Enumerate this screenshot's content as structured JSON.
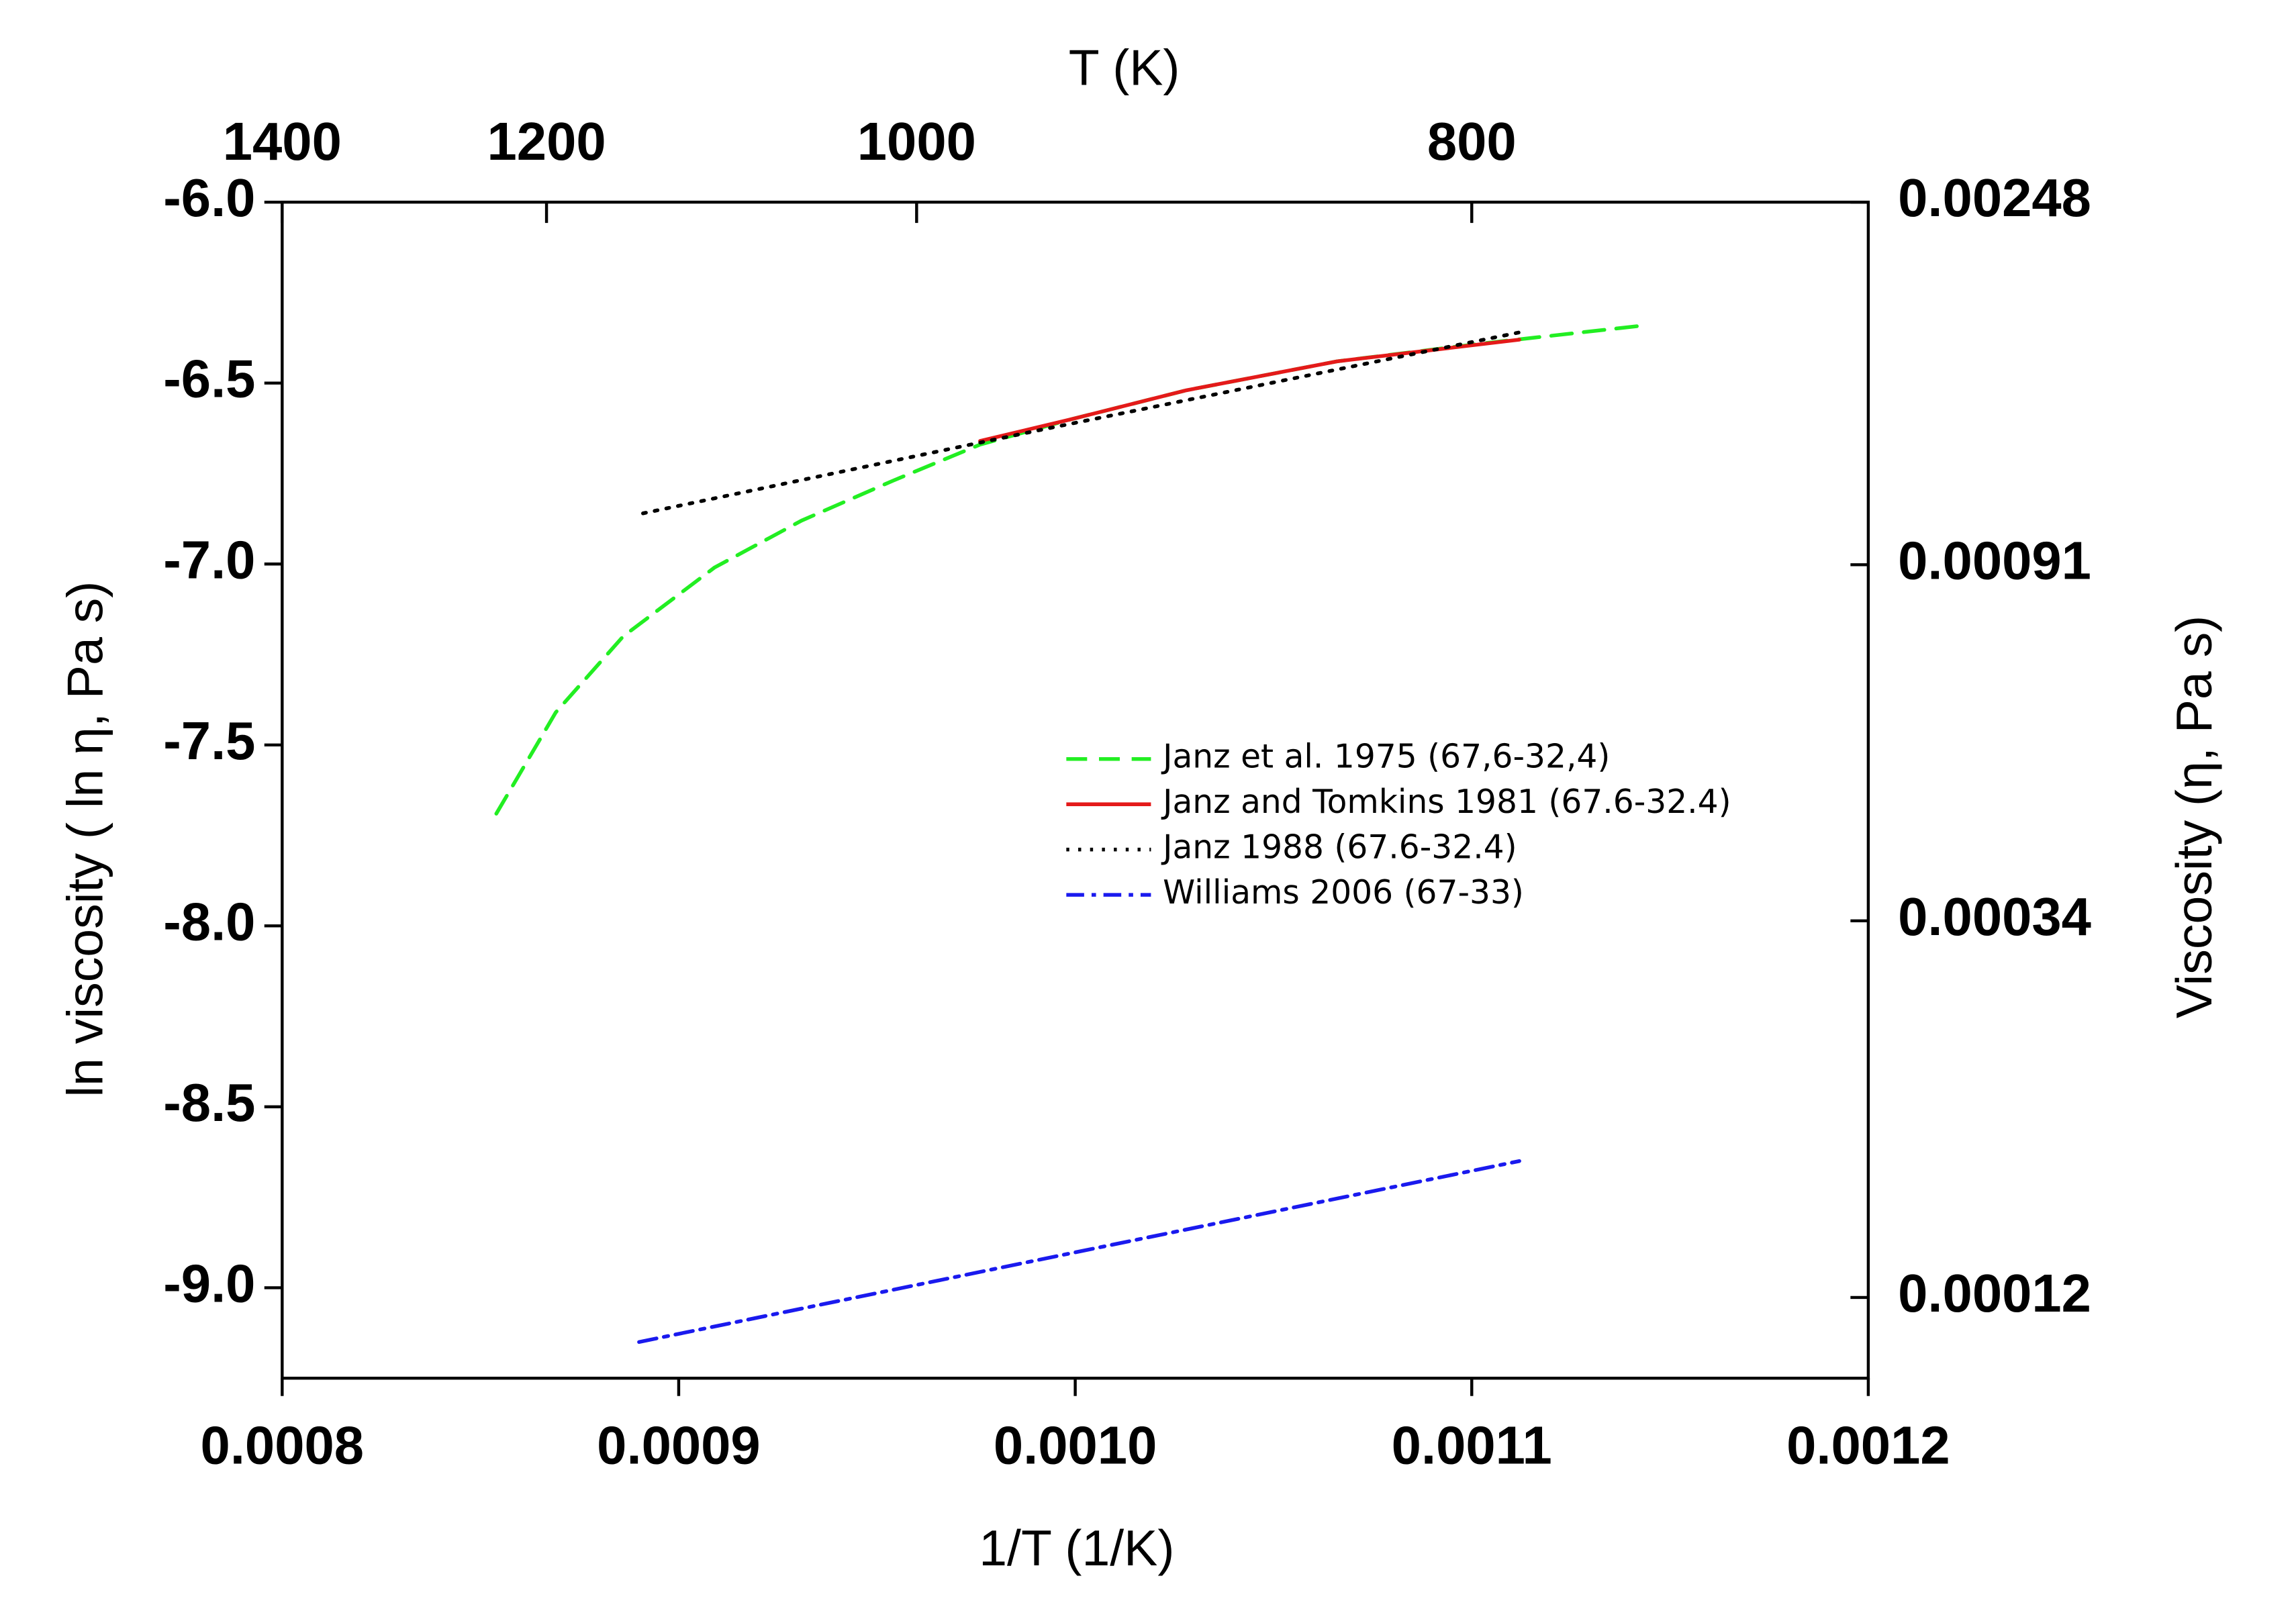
{
  "chart_data": {
    "type": "line",
    "xlabel": "1/T (1/K)",
    "ylabel": "ln viscosity ( ln η, Pa s)",
    "y2label": "Viscosity (η, Pa s)",
    "x2label": "T (K)",
    "xlim": [
      0.0008,
      0.0012
    ],
    "xticks": [
      0.0008,
      0.0009,
      {
        "value": 0.001,
        "label": "0.0010"
      },
      0.0011,
      0.0012
    ],
    "ylim": [
      -9.25,
      -6.0
    ],
    "yticks": [
      {
        "value": -6,
        "label": "-6.0"
      },
      -6.5,
      {
        "value": -7,
        "label": "-7.0"
      },
      -7.5,
      {
        "value": -8,
        "label": "-8.0"
      },
      -8.5,
      {
        "value": -9,
        "label": "-9.0"
      }
    ],
    "x2lim": [
      1400,
      700
    ],
    "x2scale": "reciprocal",
    "x2ticks": [
      1400,
      1200,
      1000,
      800
    ],
    "y2lim": [
      9.6e-05,
      0.00248
    ],
    "y2scale": "log",
    "y2ticks": [
      0.00248,
      0.00091,
      0.00034,
      0.00012
    ],
    "legend": "right",
    "series": [
      {
        "name": "Janz et al. 1975 (67,6-32,4)",
        "color": "#22ee22",
        "style": "dashed",
        "x": [
          0.000854,
          0.000869,
          0.000886,
          0.000909,
          0.000931,
          0.000954,
          0.000976,
          0.000999,
          0.001028,
          0.001066,
          0.001103,
          0.001144
        ],
        "values": [
          -7.69,
          -7.41,
          -7.2,
          -7.01,
          -6.88,
          -6.77,
          -6.67,
          -6.6,
          -6.52,
          -6.44,
          -6.39,
          -6.34
        ]
      },
      {
        "name": "Janz and Tomkins 1981 (67.6-32.4)",
        "color": "#e41a1a",
        "style": "solid",
        "x": [
          0.000976,
          0.000999,
          0.001028,
          0.001066,
          0.001112
        ],
        "values": [
          -6.66,
          -6.6,
          -6.52,
          -6.44,
          -6.38
        ]
      },
      {
        "name": "Janz 1988 (67.6-32.4)",
        "color": "#000000",
        "style": "dotted",
        "x": [
          0.000891,
          0.000991,
          0.001112
        ],
        "values": [
          -6.86,
          -6.63,
          -6.36
        ]
      },
      {
        "name": "Williams 2006 (67-33)",
        "color": "#1a1aee",
        "style": "dashdot",
        "x": [
          0.00089,
          0.001112
        ],
        "values": [
          -9.15,
          -8.65
        ]
      }
    ]
  }
}
